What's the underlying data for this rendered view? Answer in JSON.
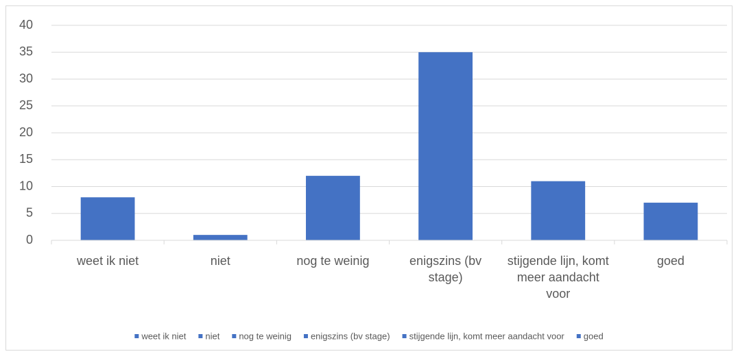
{
  "chart_data": {
    "type": "bar",
    "categories": [
      "weet ik niet",
      "niet",
      "nog te weinig",
      "enigszins (bv stage)",
      "stijgende lijn, komt meer aandacht voor",
      "goed"
    ],
    "values": [
      8,
      1,
      12,
      35,
      11,
      7
    ],
    "color": "#4472c4",
    "ylim": [
      0,
      40
    ],
    "yticks": [
      0,
      5,
      10,
      15,
      20,
      25,
      30,
      35,
      40
    ],
    "grid": true,
    "legend": "bottom"
  }
}
